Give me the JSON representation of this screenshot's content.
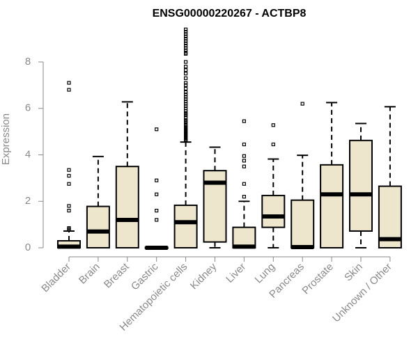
{
  "chart_data": {
    "type": "box",
    "title": "ENSG00000220267 - ACTBP8",
    "xlabel": "",
    "ylabel": "Expression",
    "ylim": [
      -0.1,
      9.6
    ],
    "yticks": [
      0,
      2,
      4,
      6,
      8
    ],
    "colors": {
      "box_fill": "#ede6cd",
      "stroke": "#000000",
      "axis": "#8a8a8a"
    },
    "categories": [
      "Bladder",
      "Brain",
      "Breast",
      "Gastric",
      "Hematopoietic cells",
      "Kidney",
      "Liver",
      "Lung",
      "Pancreas",
      "Prostate",
      "Skin",
      "Unknown / Other"
    ],
    "boxes": [
      {
        "category": "Bladder",
        "min": 0.0,
        "q1": 0.0,
        "median": 0.05,
        "q3": 0.3,
        "max": 0.72,
        "outliers": [
          7.1,
          6.8,
          3.35,
          3.1,
          2.75,
          1.8,
          1.6,
          0.85,
          0.8,
          0.78
        ]
      },
      {
        "category": "Brain",
        "min": 0.0,
        "q1": 0.0,
        "median": 0.7,
        "q3": 1.78,
        "max": 3.93,
        "outliers": []
      },
      {
        "category": "Breast",
        "min": 0.0,
        "q1": 0.0,
        "median": 1.2,
        "q3": 3.5,
        "max": 6.28,
        "outliers": []
      },
      {
        "category": "Gastric",
        "min": 0.0,
        "q1": 0.0,
        "median": 0.0,
        "q3": 0.02,
        "max": 0.03,
        "outliers": [
          5.1,
          2.9,
          2.3,
          1.6,
          1.2
        ]
      },
      {
        "category": "Hematopoietic cells",
        "min": 0.0,
        "q1": 0.0,
        "median": 1.1,
        "q3": 1.83,
        "max": 4.55,
        "outliers": [
          9.4,
          9.3,
          9.2,
          9.1,
          9.0,
          8.9,
          8.8,
          8.7,
          8.6,
          8.5,
          8.4,
          8.35,
          8.0,
          7.8,
          7.65,
          7.5,
          7.3,
          7.1,
          7.0,
          6.85,
          6.7,
          6.6,
          6.5,
          6.4,
          6.3,
          6.2,
          6.1,
          6.0,
          5.9,
          5.8,
          5.75,
          5.7,
          5.6,
          5.5,
          5.45,
          5.4,
          5.3,
          5.25,
          5.2,
          5.15,
          5.1,
          5.05,
          5.0,
          4.95,
          4.9,
          4.85,
          4.8,
          4.75,
          4.7,
          4.65,
          4.6
        ]
      },
      {
        "category": "Kidney",
        "min": 0.0,
        "q1": 0.25,
        "median": 2.8,
        "q3": 3.32,
        "max": 4.33,
        "outliers": []
      },
      {
        "category": "Liver",
        "min": 0.0,
        "q1": 0.0,
        "median": 0.05,
        "q3": 0.88,
        "max": 2.0,
        "outliers": [
          5.45,
          4.45,
          3.95,
          3.75,
          3.5,
          2.75,
          2.2
        ]
      },
      {
        "category": "Lung",
        "min": 0.0,
        "q1": 0.88,
        "median": 1.35,
        "q3": 2.25,
        "max": 3.82,
        "outliers": [
          5.28,
          4.45
        ]
      },
      {
        "category": "Pancreas",
        "min": 0.0,
        "q1": 0.0,
        "median": 0.03,
        "q3": 2.05,
        "max": 3.98,
        "outliers": [
          6.2
        ]
      },
      {
        "category": "Prostate",
        "min": 0.0,
        "q1": 0.0,
        "median": 2.3,
        "q3": 3.57,
        "max": 6.25,
        "outliers": []
      },
      {
        "category": "Skin",
        "min": 0.0,
        "q1": 0.72,
        "median": 2.3,
        "q3": 4.62,
        "max": 5.35,
        "outliers": []
      },
      {
        "category": "Unknown / Other",
        "min": 0.0,
        "q1": 0.0,
        "median": 0.37,
        "q3": 2.65,
        "max": 6.07,
        "outliers": []
      }
    ]
  }
}
